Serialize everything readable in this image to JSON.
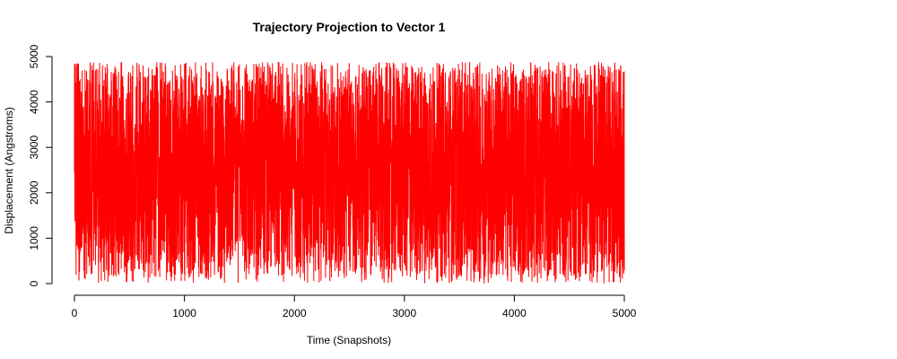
{
  "chart_data": {
    "type": "line",
    "title": "Trajectory Projection to Vector 1",
    "xlabel": "Time (Snapshots)",
    "ylabel": "Displacement (Angstroms)",
    "xlim": [
      0,
      5000
    ],
    "ylim": [
      0,
      5000
    ],
    "xticks": [
      0,
      1000,
      2000,
      3000,
      4000,
      5000
    ],
    "yticks": [
      0,
      1000,
      2000,
      3000,
      4000,
      5000
    ],
    "grid": false,
    "legend": "none",
    "series": [
      {
        "color": "#ff0000",
        "x_start": 0,
        "x_end": 5000,
        "n_points": 5000,
        "y_min": 0,
        "y_max": 4880,
        "y_mean": 2450,
        "pattern": "dense high-frequency fluctuation spanning nearly the full y range"
      }
    ]
  }
}
